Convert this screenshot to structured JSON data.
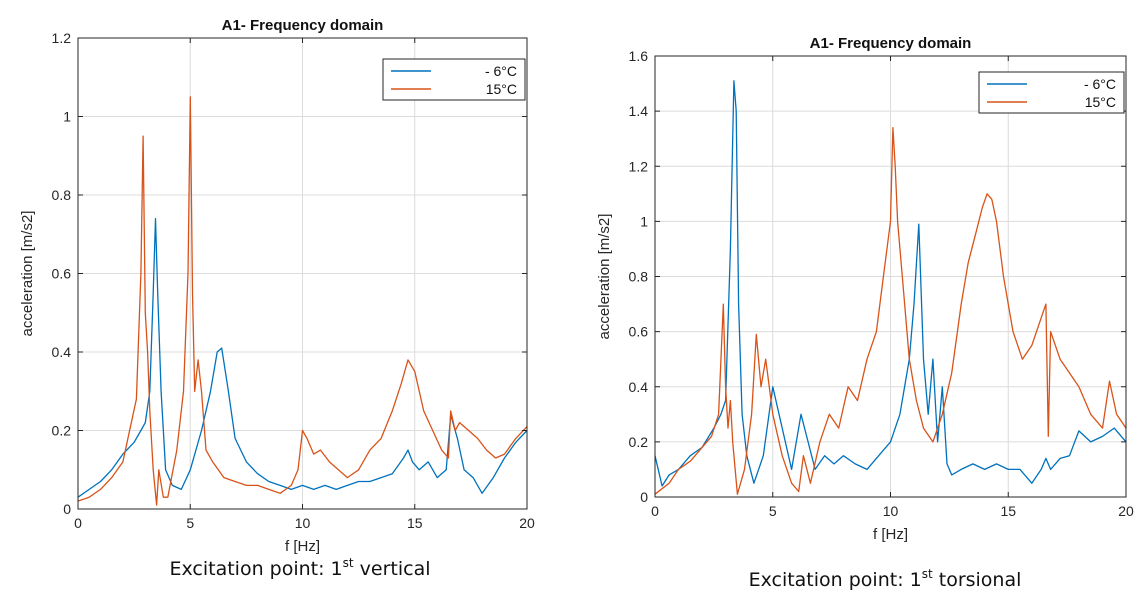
{
  "chart_data": [
    {
      "type": "line",
      "title": "A1- Frequency domain",
      "xlabel": "f [Hz]",
      "ylabel": "acceleration [m/s2]",
      "xlim": [
        0,
        20
      ],
      "ylim": [
        0,
        1.2
      ],
      "xticks": [
        0,
        5,
        10,
        15,
        20
      ],
      "xtick_labels": [
        "0",
        "5",
        "10",
        "15",
        "20"
      ],
      "yticks": [
        0,
        0.2,
        0.4,
        0.6,
        0.8,
        1.0,
        1.2
      ],
      "ytick_labels": [
        "0",
        "0.2",
        "0.4",
        "0.6",
        "0.8",
        "1",
        "1.2"
      ],
      "grid": true,
      "legend_position": "top-right",
      "caption": {
        "prefix": "Excitation point: 1",
        "sup": "st",
        "suffix": " vertical"
      },
      "series": [
        {
          "name": "- 6°C",
          "color": "#0072BD",
          "x": [
            0,
            0.5,
            1.0,
            1.5,
            2.0,
            2.5,
            2.8,
            3.0,
            3.2,
            3.35,
            3.45,
            3.55,
            3.7,
            3.9,
            4.2,
            4.6,
            5.0,
            5.5,
            5.9,
            6.2,
            6.4,
            6.7,
            7.0,
            7.5,
            8.0,
            8.5,
            9.0,
            9.5,
            10.0,
            10.5,
            11.0,
            11.5,
            12.0,
            12.5,
            13.0,
            13.5,
            14.0,
            14.5,
            14.7,
            14.9,
            15.2,
            15.6,
            16.0,
            16.4,
            16.6,
            16.9,
            17.2,
            17.6,
            18.0,
            18.5,
            19.0,
            19.5,
            20.0
          ],
          "values": [
            0.03,
            0.05,
            0.07,
            0.1,
            0.14,
            0.17,
            0.2,
            0.22,
            0.3,
            0.55,
            0.74,
            0.55,
            0.3,
            0.1,
            0.06,
            0.05,
            0.1,
            0.2,
            0.3,
            0.4,
            0.41,
            0.3,
            0.18,
            0.12,
            0.09,
            0.07,
            0.06,
            0.05,
            0.06,
            0.05,
            0.06,
            0.05,
            0.06,
            0.07,
            0.07,
            0.08,
            0.09,
            0.13,
            0.15,
            0.12,
            0.1,
            0.12,
            0.08,
            0.1,
            0.24,
            0.18,
            0.1,
            0.08,
            0.04,
            0.08,
            0.13,
            0.17,
            0.2
          ]
        },
        {
          "name": "15°C",
          "color": "#D95319",
          "x": [
            0,
            0.5,
            1.0,
            1.5,
            2.0,
            2.3,
            2.6,
            2.8,
            2.9,
            3.0,
            3.1,
            3.2,
            3.35,
            3.5,
            3.6,
            3.8,
            4.0,
            4.4,
            4.7,
            4.9,
            5.0,
            5.1,
            5.2,
            5.35,
            5.5,
            5.7,
            6.0,
            6.5,
            7.0,
            7.5,
            8.0,
            8.5,
            9.0,
            9.5,
            9.8,
            10.0,
            10.2,
            10.5,
            10.8,
            11.2,
            11.6,
            12.0,
            12.5,
            13.0,
            13.5,
            14.0,
            14.4,
            14.7,
            15.0,
            15.4,
            15.8,
            16.2,
            16.5,
            16.6,
            16.8,
            17.0,
            17.4,
            17.8,
            18.2,
            18.6,
            19.0,
            19.5,
            20.0
          ],
          "values": [
            0.02,
            0.03,
            0.05,
            0.08,
            0.12,
            0.2,
            0.28,
            0.6,
            0.95,
            0.5,
            0.4,
            0.25,
            0.1,
            0.01,
            0.1,
            0.03,
            0.03,
            0.15,
            0.3,
            0.6,
            1.05,
            0.55,
            0.3,
            0.38,
            0.3,
            0.15,
            0.12,
            0.08,
            0.07,
            0.06,
            0.06,
            0.05,
            0.04,
            0.06,
            0.1,
            0.2,
            0.18,
            0.14,
            0.15,
            0.12,
            0.1,
            0.08,
            0.1,
            0.15,
            0.18,
            0.25,
            0.32,
            0.38,
            0.35,
            0.25,
            0.2,
            0.15,
            0.13,
            0.25,
            0.2,
            0.22,
            0.2,
            0.18,
            0.15,
            0.13,
            0.14,
            0.18,
            0.21
          ]
        }
      ]
    },
    {
      "type": "line",
      "title": "A1- Frequency domain",
      "xlabel": "f [Hz]",
      "ylabel": "acceleration [m/s2]",
      "xlim": [
        0,
        20
      ],
      "ylim": [
        0,
        1.6
      ],
      "xticks": [
        0,
        5,
        10,
        15,
        20
      ],
      "xtick_labels": [
        "0",
        "5",
        "10",
        "15",
        "20"
      ],
      "yticks": [
        0,
        0.2,
        0.4,
        0.6,
        0.8,
        1.0,
        1.2,
        1.4,
        1.6
      ],
      "ytick_labels": [
        "0",
        "0.2",
        "0.4",
        "0.6",
        "0.8",
        "1",
        "1.2",
        "1.4",
        "1.6"
      ],
      "grid": true,
      "legend_position": "top-right",
      "caption": {
        "prefix": "Excitation point: 1",
        "sup": "st",
        "suffix": " torsional"
      },
      "series": [
        {
          "name": "- 6°C",
          "color": "#0072BD",
          "x": [
            0,
            0.3,
            0.6,
            1.0,
            1.5,
            2.0,
            2.5,
            2.8,
            3.0,
            3.2,
            3.35,
            3.45,
            3.55,
            3.7,
            3.9,
            4.2,
            4.6,
            5.0,
            5.4,
            5.8,
            6.2,
            6.5,
            6.8,
            7.2,
            7.6,
            8.0,
            8.5,
            9.0,
            9.5,
            10.0,
            10.4,
            10.8,
            11.0,
            11.2,
            11.4,
            11.6,
            11.8,
            12.0,
            12.2,
            12.4,
            12.6,
            13.0,
            13.5,
            14.0,
            14.5,
            15.0,
            15.5,
            16.0,
            16.4,
            16.6,
            16.8,
            17.2,
            17.6,
            18.0,
            18.5,
            19.0,
            19.5,
            20.0
          ],
          "values": [
            0.15,
            0.04,
            0.08,
            0.1,
            0.15,
            0.18,
            0.25,
            0.3,
            0.35,
            0.9,
            1.51,
            1.4,
            0.7,
            0.3,
            0.15,
            0.05,
            0.15,
            0.4,
            0.25,
            0.1,
            0.3,
            0.2,
            0.1,
            0.15,
            0.12,
            0.15,
            0.12,
            0.1,
            0.15,
            0.2,
            0.3,
            0.5,
            0.7,
            0.99,
            0.5,
            0.3,
            0.5,
            0.2,
            0.4,
            0.12,
            0.08,
            0.1,
            0.12,
            0.1,
            0.12,
            0.1,
            0.1,
            0.05,
            0.1,
            0.14,
            0.1,
            0.14,
            0.15,
            0.24,
            0.2,
            0.22,
            0.25,
            0.2
          ]
        },
        {
          "name": "15°C",
          "color": "#D95319",
          "x": [
            0,
            0.3,
            0.6,
            1.0,
            1.5,
            2.0,
            2.4,
            2.7,
            2.9,
            3.0,
            3.1,
            3.2,
            3.3,
            3.5,
            3.8,
            4.1,
            4.3,
            4.5,
            4.7,
            5.0,
            5.4,
            5.8,
            6.1,
            6.3,
            6.6,
            7.0,
            7.4,
            7.8,
            8.2,
            8.6,
            9.0,
            9.4,
            9.7,
            10.0,
            10.1,
            10.2,
            10.3,
            10.5,
            10.8,
            11.1,
            11.4,
            11.8,
            12.2,
            12.6,
            13.0,
            13.3,
            13.6,
            13.9,
            14.1,
            14.3,
            14.5,
            14.8,
            15.2,
            15.6,
            16.0,
            16.4,
            16.6,
            16.7,
            16.8,
            17.2,
            17.6,
            18.0,
            18.5,
            19.0,
            19.3,
            19.6,
            20.0
          ],
          "values": [
            0.01,
            0.03,
            0.05,
            0.1,
            0.13,
            0.18,
            0.22,
            0.3,
            0.7,
            0.4,
            0.25,
            0.35,
            0.2,
            0.01,
            0.1,
            0.3,
            0.59,
            0.4,
            0.5,
            0.3,
            0.15,
            0.05,
            0.02,
            0.15,
            0.05,
            0.2,
            0.3,
            0.25,
            0.4,
            0.35,
            0.5,
            0.6,
            0.8,
            1.0,
            1.34,
            1.2,
            1.0,
            0.8,
            0.5,
            0.35,
            0.25,
            0.2,
            0.3,
            0.45,
            0.7,
            0.85,
            0.95,
            1.05,
            1.1,
            1.08,
            1.0,
            0.8,
            0.6,
            0.5,
            0.55,
            0.65,
            0.7,
            0.22,
            0.6,
            0.5,
            0.45,
            0.4,
            0.3,
            0.25,
            0.42,
            0.3,
            0.25
          ]
        }
      ]
    }
  ]
}
